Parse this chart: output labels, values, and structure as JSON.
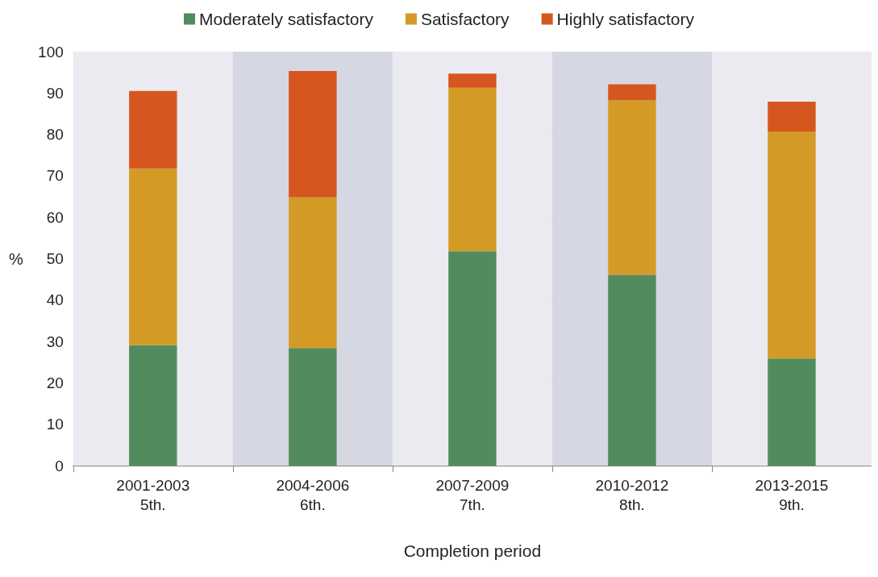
{
  "chart_data": {
    "type": "bar",
    "stacked": true,
    "xlabel": "Completion period",
    "ylabel": "%",
    "categories": [
      "2001-2003\n5th.",
      "2004-2006\n6th.",
      "2007-2009\n7th.",
      "2010-2012\n8th.",
      "2013-2015\n9th."
    ],
    "series": [
      {
        "name": "Moderately satisfactory",
        "color": "#528c5e",
        "values": [
          29.1,
          28.4,
          51.8,
          46.1,
          25.9
        ]
      },
      {
        "name": "Satisfactory",
        "color": "#d49a26",
        "values": [
          42.7,
          36.4,
          39.5,
          42.2,
          54.8
        ]
      },
      {
        "name": "Highly satisfactory",
        "color": "#d6561f",
        "values": [
          18.7,
          30.5,
          3.4,
          3.8,
          7.2
        ]
      }
    ],
    "ylim": [
      0,
      100
    ],
    "yticks": [
      0,
      10,
      20,
      30,
      40,
      50,
      60,
      70,
      80,
      90,
      100
    ],
    "grid": "y",
    "legend": "top"
  }
}
